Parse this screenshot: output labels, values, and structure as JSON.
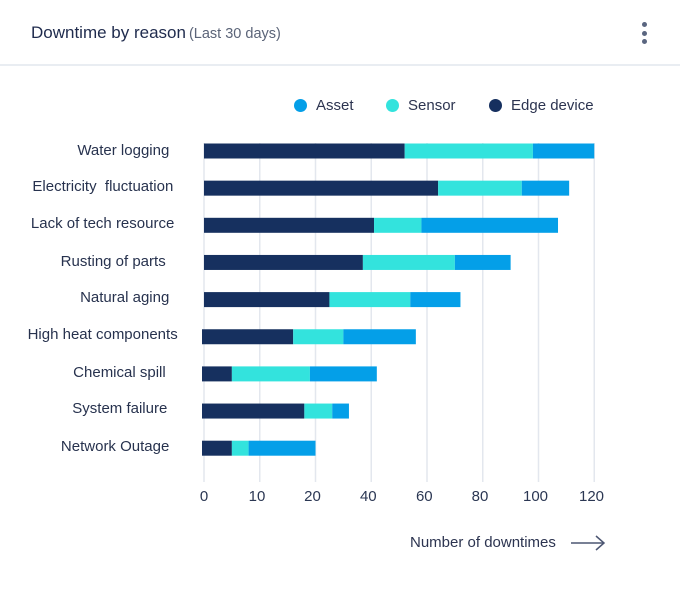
{
  "card": {
    "title": "Downtime by reason",
    "subtitle": "(Last 30 days)",
    "menu_icon": "kebab-vertical-icon"
  },
  "chart_data": {
    "type": "bar",
    "orientation": "horizontal",
    "stacked": true,
    "title": "Downtime by reason",
    "subtitle": "(Last 30 days)",
    "xlabel": "Number of downtimes",
    "ylabel": "",
    "categories": [
      "Water logging",
      "Electricity  fluctuation",
      "Lack of tech resource",
      "Rusting of parts",
      "Natural aging",
      "High heat components",
      "Chemical spill",
      "System failure",
      "Network Outage"
    ],
    "series": [
      {
        "name": "Edge device",
        "color": "#16305f",
        "values": [
          52,
          64,
          41,
          37,
          25,
          16,
          5,
          18,
          5
        ]
      },
      {
        "name": "Sensor",
        "color": "#33e3dd",
        "values": [
          46,
          30,
          17,
          33,
          29,
          14,
          14,
          8,
          3
        ]
      },
      {
        "name": "Asset",
        "color": "#049fe8",
        "values": [
          22,
          17,
          49,
          20,
          18,
          26,
          23,
          6,
          12
        ]
      }
    ],
    "legend": {
      "placement": "top-right",
      "entries": [
        {
          "name": "Asset",
          "color": "#049fe8"
        },
        {
          "name": "Sensor",
          "color": "#33e3dd"
        },
        {
          "name": "Edge device",
          "color": "#16305f"
        }
      ]
    },
    "xticks": [
      0,
      10,
      20,
      40,
      60,
      80,
      100,
      120
    ],
    "xlim": [
      0,
      120
    ],
    "grid": "vertical"
  }
}
